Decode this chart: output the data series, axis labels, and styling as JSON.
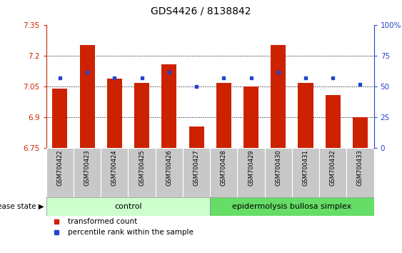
{
  "title": "GDS4426 / 8138842",
  "samples": [
    "GSM700422",
    "GSM700423",
    "GSM700424",
    "GSM700425",
    "GSM700426",
    "GSM700427",
    "GSM700428",
    "GSM700429",
    "GSM700430",
    "GSM700431",
    "GSM700432",
    "GSM700433"
  ],
  "bar_values": [
    7.04,
    7.255,
    7.09,
    7.07,
    7.16,
    6.855,
    7.07,
    7.05,
    7.255,
    7.07,
    7.01,
    6.9
  ],
  "percentile_values": [
    57,
    62,
    57,
    57,
    62,
    50,
    57,
    57,
    62,
    57,
    57,
    52
  ],
  "ylim_left": [
    6.75,
    7.35
  ],
  "ylim_right": [
    0,
    100
  ],
  "bar_color": "#cc2200",
  "dot_color": "#2244cc",
  "y_ticks_left": [
    6.75,
    6.9,
    7.05,
    7.2,
    7.35
  ],
  "y_ticks_right": [
    0,
    25,
    50,
    75,
    100
  ],
  "y_ticks_right_labels": [
    "0",
    "25",
    "50",
    "75",
    "100%"
  ],
  "control_samples": 6,
  "group_labels": [
    "control",
    "epidermolysis bullosa simplex"
  ],
  "group_colors": [
    "#ccffcc",
    "#66dd66"
  ],
  "disease_state_label": "disease state",
  "legend_entries": [
    "transformed count",
    "percentile rank within the sample"
  ],
  "grid_lines": [
    6.9,
    7.05,
    7.2
  ],
  "background_color": "#ffffff",
  "tick_area_color": "#c8c8c8",
  "bar_width": 0.55
}
